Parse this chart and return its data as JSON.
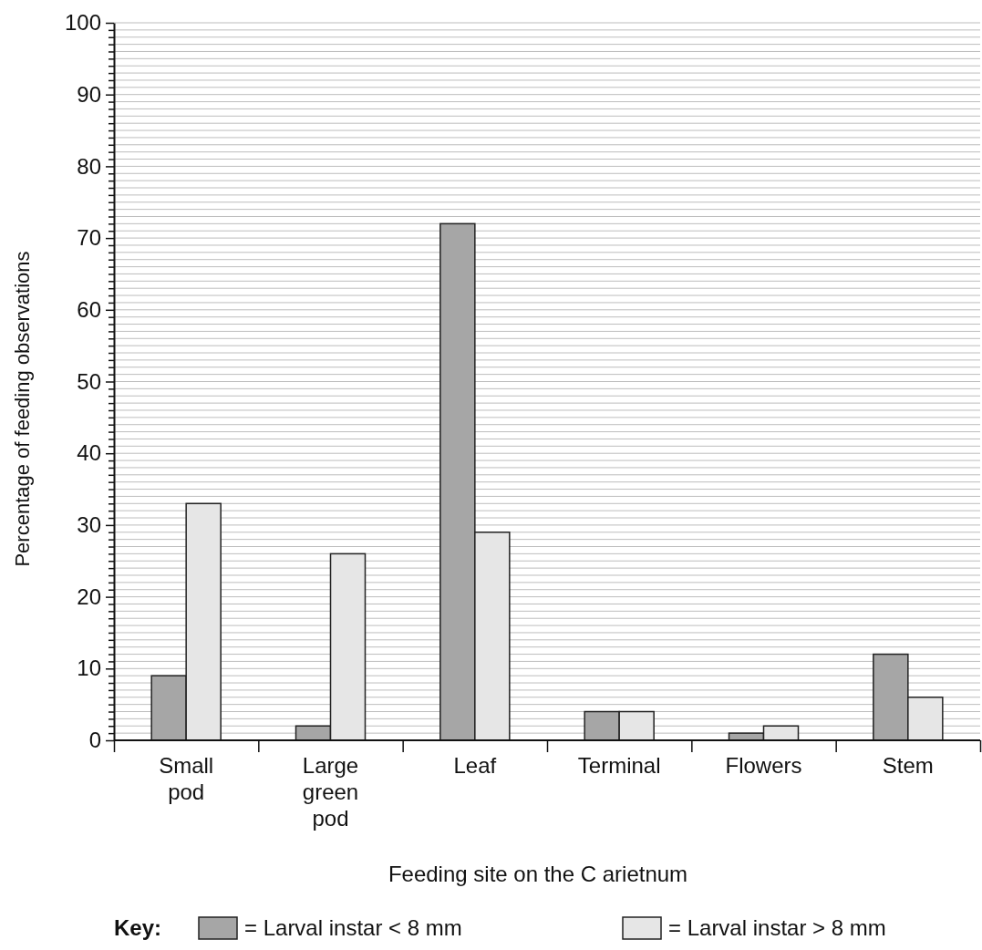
{
  "chart_data": {
    "type": "bar",
    "xlabel": "Feeding site on the C arietnum",
    "ylabel": "Percentage of feeding observations",
    "legend_title": "Key:",
    "categories": [
      "Small pod",
      "Large green pod",
      "Leaf",
      "Terminal",
      "Flowers",
      "Stem"
    ],
    "series": [
      {
        "name": "= Larval instar < 8 mm",
        "color": "#a6a6a6",
        "values": [
          9,
          2,
          72,
          4,
          1,
          12
        ]
      },
      {
        "name": "= Larval instar > 8 mm",
        "color": "#e6e6e6",
        "values": [
          33,
          26,
          29,
          4,
          2,
          6
        ]
      }
    ],
    "ylim": [
      0,
      100
    ],
    "yticks": [
      0,
      {
        "value": 1,
        "label": null
      },
      {
        "value": 2,
        "label": null
      },
      {
        "value": 3,
        "label": null
      },
      {
        "value": 4,
        "label": null
      },
      {
        "value": 5,
        "label": null
      },
      {
        "value": 6,
        "label": null
      },
      {
        "value": 7,
        "label": null
      },
      {
        "value": 8,
        "label": null
      },
      {
        "value": 9,
        "label": null
      },
      10,
      {
        "value": 11,
        "label": null
      },
      {
        "value": 12,
        "label": null
      },
      {
        "value": 13,
        "label": null
      },
      {
        "value": 14,
        "label": null
      },
      {
        "value": 15,
        "label": null
      },
      {
        "value": 16,
        "label": null
      },
      {
        "value": 17,
        "label": null
      },
      {
        "value": 18,
        "label": null
      },
      {
        "value": 19,
        "label": null
      },
      20,
      {
        "value": 21,
        "label": null
      },
      {
        "value": 22,
        "label": null
      },
      {
        "value": 23,
        "label": null
      },
      {
        "value": 24,
        "label": null
      },
      {
        "value": 25,
        "label": null
      },
      {
        "value": 26,
        "label": null
      },
      {
        "value": 27,
        "label": null
      },
      {
        "value": 28,
        "label": null
      },
      {
        "value": 29,
        "label": null
      },
      30,
      {
        "value": 31,
        "label": null
      },
      {
        "value": 32,
        "label": null
      },
      {
        "value": 33,
        "label": null
      },
      {
        "value": 34,
        "label": null
      },
      {
        "value": 35,
        "label": null
      },
      {
        "value": 36,
        "label": null
      },
      {
        "value": 37,
        "label": null
      },
      {
        "value": 38,
        "label": null
      },
      {
        "value": 39,
        "label": null
      },
      40,
      {
        "value": 41,
        "label": null
      },
      {
        "value": 42,
        "label": null
      },
      {
        "value": 43,
        "label": null
      },
      {
        "value": 44,
        "label": null
      },
      {
        "value": 45,
        "label": null
      },
      {
        "value": 46,
        "label": null
      },
      {
        "value": 47,
        "label": null
      },
      {
        "value": 48,
        "label": null
      },
      {
        "value": 49,
        "label": null
      },
      50,
      {
        "value": 51,
        "label": null
      },
      {
        "value": 52,
        "label": null
      },
      {
        "value": 53,
        "label": null
      },
      {
        "value": 54,
        "label": null
      },
      {
        "value": 55,
        "label": null
      },
      {
        "value": 56,
        "label": null
      },
      {
        "value": 57,
        "label": null
      },
      {
        "value": 58,
        "label": null
      },
      {
        "value": 59,
        "label": null
      },
      60,
      {
        "value": 61,
        "label": null
      },
      {
        "value": 62,
        "label": null
      },
      {
        "value": 63,
        "label": null
      },
      {
        "value": 64,
        "label": null
      },
      {
        "value": 65,
        "label": null
      },
      {
        "value": 66,
        "label": null
      },
      {
        "value": 67,
        "label": null
      },
      {
        "value": 68,
        "label": null
      },
      {
        "value": 69,
        "label": null
      },
      70,
      {
        "value": 71,
        "label": null
      },
      {
        "value": 72,
        "label": null
      },
      {
        "value": 73,
        "label": null
      },
      {
        "value": 74,
        "label": null
      },
      {
        "value": 75,
        "label": null
      },
      {
        "value": 76,
        "label": null
      },
      {
        "value": 77,
        "label": null
      },
      {
        "value": 78,
        "label": null
      },
      {
        "value": 79,
        "label": null
      },
      80,
      {
        "value": 81,
        "label": null
      },
      {
        "value": 82,
        "label": null
      },
      {
        "value": 83,
        "label": null
      },
      {
        "value": 84,
        "label": null
      },
      {
        "value": 85,
        "label": null
      },
      {
        "value": 86,
        "label": null
      },
      {
        "value": 87,
        "label": null
      },
      {
        "value": 88,
        "label": null
      },
      {
        "value": 89,
        "label": null
      },
      90,
      {
        "value": 91,
        "label": null
      },
      {
        "value": 92,
        "label": null
      },
      {
        "value": 93,
        "label": null
      },
      {
        "value": 94,
        "label": null
      },
      {
        "value": 95,
        "label": null
      },
      {
        "value": 96,
        "label": null
      },
      {
        "value": 97,
        "label": null
      },
      {
        "value": 98,
        "label": null
      },
      {
        "value": 99,
        "label": null
      },
      100
    ],
    "grid": "y",
    "legend": "bottom"
  }
}
